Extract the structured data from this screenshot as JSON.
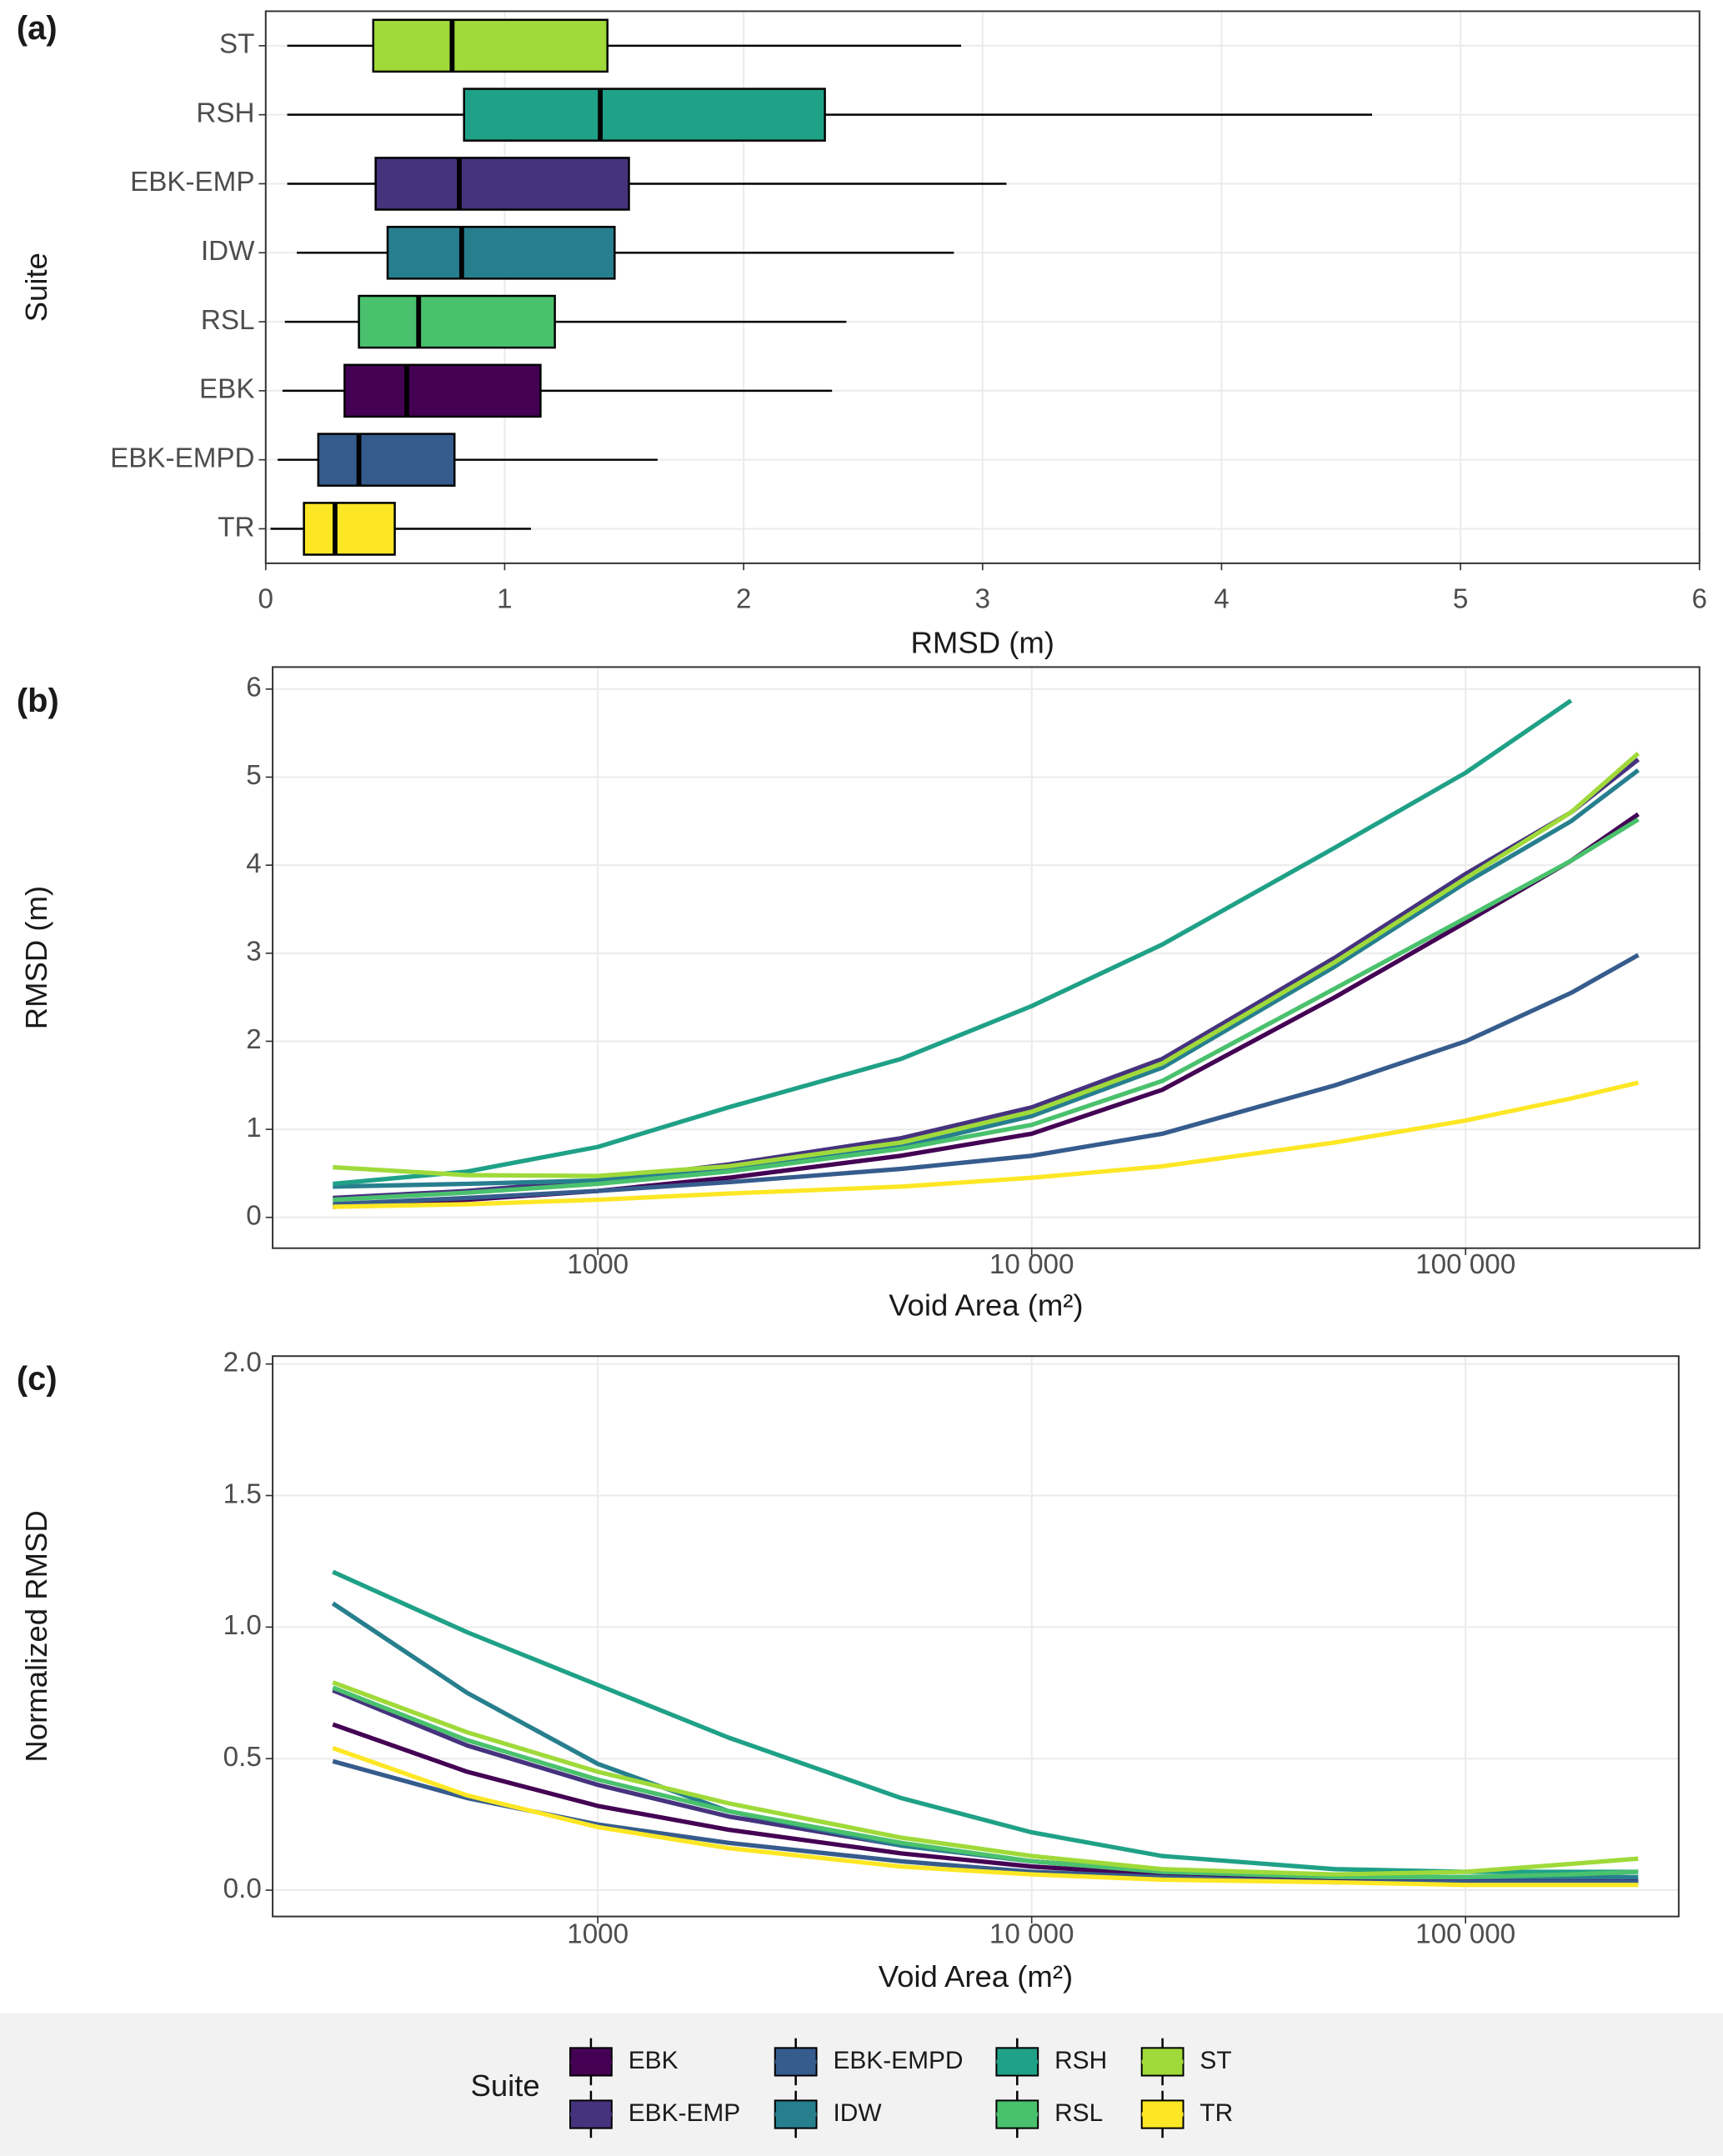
{
  "chart_data": [
    {
      "type": "box",
      "panel_label": "(a)",
      "xlabel": "RMSD (m)",
      "ylabel": "Suite",
      "categories": [
        "ST",
        "RSH",
        "EBK-EMP",
        "IDW",
        "RSL",
        "EBK",
        "EBK-EMPD",
        "TR"
      ],
      "colors": [
        "#9fda3a",
        "#1fa187",
        "#46337e",
        "#277f8e",
        "#4ac16d",
        "#440154",
        "#365c8d",
        "#fde725"
      ],
      "min": [
        0.09,
        0.09,
        0.09,
        0.13,
        0.08,
        0.07,
        0.05,
        0.02
      ],
      "q1": [
        0.45,
        0.83,
        0.46,
        0.51,
        0.39,
        0.33,
        0.22,
        0.16
      ],
      "median": [
        0.78,
        1.4,
        0.81,
        0.82,
        0.64,
        0.59,
        0.39,
        0.29
      ],
      "q3": [
        1.43,
        2.34,
        1.52,
        1.46,
        1.21,
        1.15,
        0.79,
        0.54
      ],
      "max": [
        2.91,
        4.63,
        3.1,
        2.88,
        2.43,
        2.37,
        1.64,
        1.11
      ],
      "xlim": [
        0,
        6
      ],
      "xticks": [
        0,
        1,
        2,
        3,
        4,
        5,
        6
      ],
      "grid": true
    },
    {
      "type": "line",
      "panel_label": "(b)",
      "xlabel": "Void Area (m²)",
      "ylabel": "RMSD (m)",
      "log_x": true,
      "grid": true,
      "legend_title": "Suite",
      "legend_position": "bottom",
      "x": [
        245,
        500,
        1000,
        2000,
        5000,
        10000,
        20000,
        50000,
        100000,
        175000,
        250000
      ],
      "xlim": [
        178,
        346000
      ],
      "xticks": [
        1000,
        {
          "value": 10000,
          "label": "10 000"
        },
        {
          "value": 100000,
          "label": "100 000"
        }
      ],
      "ylim": [
        -0.35,
        6.25
      ],
      "yticks": [
        0,
        1,
        2,
        3,
        4,
        5,
        6
      ],
      "series": [
        {
          "name": "EBK",
          "color": "#440154",
          "values": [
            0.12,
            0.2,
            0.3,
            0.45,
            0.7,
            0.95,
            1.45,
            2.5,
            3.35,
            4.05,
            4.58
          ]
        },
        {
          "name": "EBK-EMP",
          "color": "#46337e",
          "values": [
            0.22,
            0.3,
            0.42,
            0.6,
            0.9,
            1.25,
            1.8,
            2.95,
            3.9,
            4.6,
            5.2
          ]
        },
        {
          "name": "EBK-EMPD",
          "color": "#365c8d",
          "values": [
            0.15,
            0.22,
            0.3,
            0.4,
            0.55,
            0.7,
            0.95,
            1.5,
            2.0,
            2.55,
            2.98
          ]
        },
        {
          "name": "IDW",
          "color": "#277f8e",
          "values": [
            0.35,
            0.38,
            0.42,
            0.55,
            0.8,
            1.15,
            1.7,
            2.85,
            3.8,
            4.5,
            5.08
          ]
        },
        {
          "name": "RSH",
          "color": "#1fa187",
          "values": [
            0.38,
            0.52,
            0.8,
            1.25,
            1.8,
            2.4,
            3.1,
            4.2,
            5.05,
            5.87,
            null
          ]
        },
        {
          "name": "RSL",
          "color": "#4ac16d",
          "values": [
            0.2,
            0.28,
            0.38,
            0.52,
            0.78,
            1.05,
            1.55,
            2.6,
            3.4,
            4.05,
            4.52
          ]
        },
        {
          "name": "ST",
          "color": "#9fda3a",
          "values": [
            0.57,
            0.48,
            0.47,
            0.58,
            0.85,
            1.2,
            1.75,
            2.9,
            3.85,
            4.6,
            5.27
          ]
        },
        {
          "name": "TR",
          "color": "#fde725",
          "values": [
            0.12,
            0.15,
            0.2,
            0.27,
            0.35,
            0.45,
            0.58,
            0.85,
            1.1,
            1.35,
            1.53
          ]
        }
      ]
    },
    {
      "type": "line",
      "panel_label": "(c)",
      "xlabel": "Void Area (m²)",
      "ylabel": "Normalized RMSD",
      "log_x": true,
      "grid": true,
      "x": [
        245,
        500,
        1000,
        2000,
        5000,
        10000,
        20000,
        50000,
        100000,
        175000,
        250000
      ],
      "xlim": [
        178,
        310000
      ],
      "xticks": [
        1000,
        {
          "value": 10000,
          "label": "10 000"
        },
        {
          "value": 100000,
          "label": "100 000"
        }
      ],
      "ylim": [
        -0.1,
        2.03
      ],
      "yticks": [
        {
          "value": 0,
          "label": "0.0"
        },
        0.5,
        {
          "value": 1,
          "label": "1.0"
        },
        1.5,
        {
          "value": 2,
          "label": "2.0"
        }
      ],
      "series": [
        {
          "name": "EBK",
          "color": "#440154",
          "values": [
            0.63,
            0.45,
            0.32,
            0.23,
            0.14,
            0.09,
            0.06,
            0.04,
            0.03,
            0.03,
            0.03
          ]
        },
        {
          "name": "EBK-EMP",
          "color": "#46337e",
          "values": [
            0.76,
            0.55,
            0.4,
            0.28,
            0.17,
            0.11,
            0.07,
            0.05,
            0.04,
            0.04,
            0.04
          ]
        },
        {
          "name": "EBK-EMPD",
          "color": "#365c8d",
          "values": [
            0.49,
            0.35,
            0.25,
            0.18,
            0.11,
            0.07,
            0.05,
            0.03,
            0.03,
            0.03,
            0.03
          ]
        },
        {
          "name": "IDW",
          "color": "#277f8e",
          "values": [
            1.09,
            0.75,
            0.48,
            0.3,
            0.17,
            0.11,
            0.07,
            0.05,
            0.05,
            0.05,
            0.05
          ]
        },
        {
          "name": "RSH",
          "color": "#1fa187",
          "values": [
            1.21,
            0.98,
            0.78,
            0.58,
            0.35,
            0.22,
            0.13,
            0.08,
            0.07,
            0.07,
            0.07
          ]
        },
        {
          "name": "RSL",
          "color": "#4ac16d",
          "values": [
            0.77,
            0.57,
            0.42,
            0.3,
            0.18,
            0.11,
            0.07,
            0.05,
            0.05,
            0.06,
            0.07
          ]
        },
        {
          "name": "ST",
          "color": "#9fda3a",
          "values": [
            0.79,
            0.6,
            0.45,
            0.33,
            0.2,
            0.13,
            0.08,
            0.06,
            0.07,
            0.1,
            0.12
          ]
        },
        {
          "name": "TR",
          "color": "#fde725",
          "values": [
            0.54,
            0.36,
            0.24,
            0.16,
            0.09,
            0.06,
            0.04,
            0.03,
            0.02,
            0.02,
            0.02
          ]
        }
      ]
    }
  ]
}
